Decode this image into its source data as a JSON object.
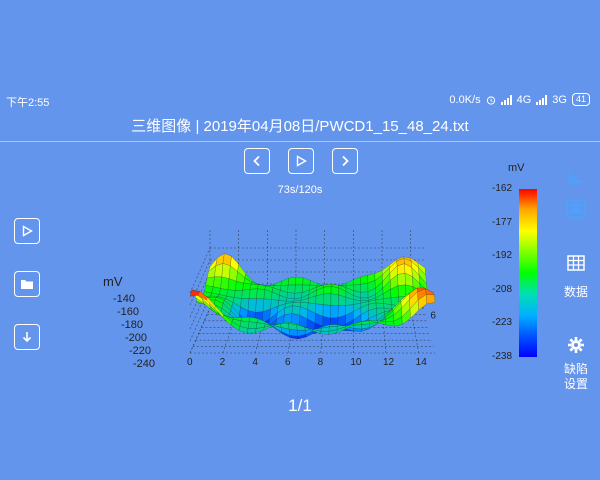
{
  "status_bar": {
    "time": "下午2:55",
    "speed": "0.0K/s",
    "network_a": "4G",
    "network_b": "3G",
    "battery": "41"
  },
  "header": {
    "title": "三维图像 | 2019年04月08日/PWCD1_15_48_24.txt"
  },
  "playback": {
    "elapsed_label": "73s/120s",
    "page": "1/1"
  },
  "right_panel": {
    "data_label": "数据",
    "defect_label_line1": "缺陷",
    "defect_label_line2": "设置"
  },
  "colors": {
    "background": "#6495ED",
    "surface_high": "#ff0000",
    "surface_mid": "#00ff00",
    "surface_low": "#0000ff"
  },
  "chart_data": {
    "type": "surface3d",
    "zlabel": "mV",
    "z_ticks": [
      "-140",
      "-160",
      "-180",
      "-200",
      "-220",
      "-240"
    ],
    "x_ticks": [
      "0",
      "2",
      "4",
      "6",
      "8",
      "10",
      "12",
      "14"
    ],
    "y_ticks": [
      "6"
    ],
    "colorbar_unit": "mV",
    "colorbar_ticks": [
      "-162",
      "-177",
      "-192",
      "-208",
      "-223",
      "-238"
    ],
    "zlim": [
      -238,
      -162
    ],
    "xlim": [
      0,
      15
    ],
    "ylim": [
      0,
      7
    ]
  }
}
